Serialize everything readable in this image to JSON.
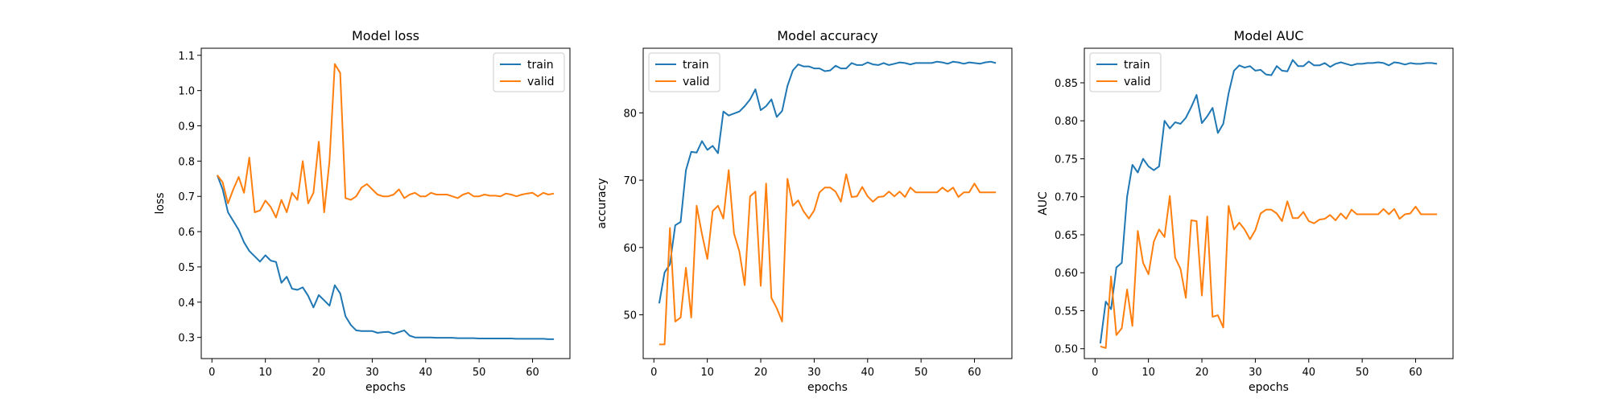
{
  "colors": {
    "train": "#1f77b4",
    "valid": "#ff7f0e"
  },
  "chart_data": [
    {
      "type": "line",
      "title": "Model loss",
      "xlabel": "epochs",
      "ylabel": "loss",
      "xlim": [
        -2,
        67
      ],
      "ylim": [
        0.24,
        1.12
      ],
      "xticks": [
        0,
        10,
        20,
        30,
        40,
        50,
        60
      ],
      "yticks": [
        0.3,
        0.4,
        0.5,
        0.6,
        0.7,
        0.8,
        0.9,
        1.0,
        1.1
      ],
      "ytick_labels": [
        "0.3",
        "0.4",
        "0.5",
        "0.6",
        "0.7",
        "0.8",
        "0.9",
        "1.0",
        "1.1"
      ],
      "legend": "top-right",
      "x": [
        1,
        2,
        3,
        4,
        5,
        6,
        7,
        8,
        9,
        10,
        11,
        12,
        13,
        14,
        15,
        16,
        17,
        18,
        19,
        20,
        21,
        22,
        23,
        24,
        25,
        26,
        27,
        28,
        29,
        30,
        31,
        32,
        33,
        34,
        35,
        36,
        37,
        38,
        39,
        40,
        41,
        42,
        43,
        44,
        45,
        46,
        47,
        48,
        49,
        50,
        51,
        52,
        53,
        54,
        55,
        56,
        57,
        58,
        59,
        60,
        61,
        62,
        63,
        64
      ],
      "series": [
        {
          "name": "train",
          "values": [
            0.76,
            0.72,
            0.655,
            0.63,
            0.605,
            0.57,
            0.545,
            0.53,
            0.515,
            0.533,
            0.518,
            0.514,
            0.455,
            0.472,
            0.438,
            0.435,
            0.442,
            0.418,
            0.385,
            0.42,
            0.405,
            0.39,
            0.448,
            0.425,
            0.36,
            0.335,
            0.32,
            0.318,
            0.318,
            0.318,
            0.313,
            0.315,
            0.316,
            0.31,
            0.315,
            0.32,
            0.305,
            0.3,
            0.3,
            0.3,
            0.3,
            0.299,
            0.299,
            0.299,
            0.299,
            0.298,
            0.298,
            0.298,
            0.298,
            0.297,
            0.297,
            0.297,
            0.297,
            0.297,
            0.297,
            0.297,
            0.296,
            0.296,
            0.296,
            0.296,
            0.296,
            0.296,
            0.295,
            0.295
          ]
        },
        {
          "name": "valid",
          "values": [
            0.76,
            0.74,
            0.68,
            0.72,
            0.755,
            0.71,
            0.81,
            0.655,
            0.66,
            0.688,
            0.67,
            0.64,
            0.69,
            0.655,
            0.71,
            0.69,
            0.8,
            0.68,
            0.71,
            0.855,
            0.655,
            0.8,
            1.075,
            1.05,
            0.695,
            0.69,
            0.7,
            0.725,
            0.735,
            0.72,
            0.705,
            0.7,
            0.7,
            0.705,
            0.72,
            0.695,
            0.705,
            0.71,
            0.7,
            0.7,
            0.71,
            0.705,
            0.705,
            0.705,
            0.7,
            0.695,
            0.705,
            0.71,
            0.7,
            0.7,
            0.705,
            0.702,
            0.702,
            0.7,
            0.708,
            0.705,
            0.7,
            0.705,
            0.708,
            0.71,
            0.7,
            0.71,
            0.705,
            0.708
          ]
        }
      ]
    },
    {
      "type": "line",
      "title": "Model accuracy",
      "xlabel": "epochs",
      "ylabel": "accuracy",
      "xlim": [
        -2,
        67
      ],
      "ylim": [
        43.5,
        89.6
      ],
      "xticks": [
        0,
        10,
        20,
        30,
        40,
        50,
        60
      ],
      "yticks": [
        50,
        60,
        70,
        80
      ],
      "ytick_labels": [
        "50",
        "60",
        "70",
        "80"
      ],
      "legend": "top-left",
      "x": [
        1,
        2,
        3,
        4,
        5,
        6,
        7,
        8,
        9,
        10,
        11,
        12,
        13,
        14,
        15,
        16,
        17,
        18,
        19,
        20,
        21,
        22,
        23,
        24,
        25,
        26,
        27,
        28,
        29,
        30,
        31,
        32,
        33,
        34,
        35,
        36,
        37,
        38,
        39,
        40,
        41,
        42,
        43,
        44,
        45,
        46,
        47,
        48,
        49,
        50,
        51,
        52,
        53,
        54,
        55,
        56,
        57,
        58,
        59,
        60,
        61,
        62,
        63,
        64
      ],
      "series": [
        {
          "name": "train",
          "values": [
            51.7,
            56.3,
            57.5,
            63.3,
            63.8,
            71.5,
            74.2,
            74.1,
            75.8,
            74.5,
            75.1,
            74.0,
            80.2,
            79.6,
            79.9,
            80.2,
            81.0,
            82.0,
            83.5,
            80.4,
            81.0,
            82.0,
            79.4,
            80.3,
            84.0,
            86.3,
            87.2,
            86.9,
            86.9,
            86.6,
            86.6,
            86.2,
            86.3,
            87.0,
            86.6,
            86.6,
            87.4,
            87.1,
            87.1,
            87.5,
            87.2,
            87.1,
            87.4,
            87.1,
            87.3,
            87.5,
            87.4,
            87.2,
            87.4,
            87.4,
            87.4,
            87.4,
            87.6,
            87.5,
            87.3,
            87.6,
            87.5,
            87.3,
            87.5,
            87.4,
            87.3,
            87.5,
            87.6,
            87.4
          ]
        },
        {
          "name": "valid",
          "values": [
            45.6,
            45.6,
            62.9,
            49.0,
            49.6,
            57.0,
            49.6,
            66.2,
            62.0,
            58.3,
            65.4,
            66.2,
            64.3,
            71.5,
            62.1,
            59.4,
            54.4,
            67.6,
            68.3,
            54.3,
            69.5,
            52.5,
            51.0,
            49.0,
            70.2,
            66.2,
            67.0,
            65.4,
            64.3,
            65.5,
            68.2,
            68.9,
            68.9,
            68.3,
            66.8,
            70.9,
            67.5,
            67.6,
            69.0,
            67.6,
            66.8,
            67.5,
            67.6,
            68.3,
            67.6,
            68.3,
            67.5,
            68.9,
            68.2,
            68.2,
            68.2,
            68.2,
            68.2,
            68.9,
            68.3,
            68.9,
            67.5,
            68.2,
            68.2,
            69.5,
            68.2,
            68.2,
            68.2,
            68.2
          ]
        }
      ]
    },
    {
      "type": "line",
      "title": "Model AUC",
      "xlabel": "epochs",
      "ylabel": "AUC",
      "xlim": [
        -2,
        67
      ],
      "ylim": [
        0.487,
        0.8955
      ],
      "xticks": [
        0,
        10,
        20,
        30,
        40,
        50,
        60
      ],
      "yticks": [
        0.5,
        0.55,
        0.6,
        0.65,
        0.7,
        0.75,
        0.8,
        0.85
      ],
      "ytick_labels": [
        "0.50",
        "0.55",
        "0.60",
        "0.65",
        "0.70",
        "0.75",
        "0.80",
        "0.85"
      ],
      "legend": "top-left",
      "x": [
        1,
        2,
        3,
        4,
        5,
        6,
        7,
        8,
        9,
        10,
        11,
        12,
        13,
        14,
        15,
        16,
        17,
        18,
        19,
        20,
        21,
        22,
        23,
        24,
        25,
        26,
        27,
        28,
        29,
        30,
        31,
        32,
        33,
        34,
        35,
        36,
        37,
        38,
        39,
        40,
        41,
        42,
        43,
        44,
        45,
        46,
        47,
        48,
        49,
        50,
        51,
        52,
        53,
        54,
        55,
        56,
        57,
        58,
        59,
        60,
        61,
        62,
        63,
        64
      ],
      "series": [
        {
          "name": "train",
          "values": [
            0.507,
            0.562,
            0.552,
            0.607,
            0.613,
            0.7,
            0.742,
            0.732,
            0.75,
            0.74,
            0.735,
            0.74,
            0.8,
            0.79,
            0.798,
            0.796,
            0.804,
            0.818,
            0.834,
            0.797,
            0.806,
            0.817,
            0.784,
            0.796,
            0.836,
            0.866,
            0.873,
            0.87,
            0.872,
            0.866,
            0.867,
            0.861,
            0.86,
            0.872,
            0.866,
            0.865,
            0.88,
            0.872,
            0.872,
            0.878,
            0.873,
            0.873,
            0.876,
            0.871,
            0.875,
            0.877,
            0.875,
            0.873,
            0.875,
            0.875,
            0.876,
            0.876,
            0.877,
            0.876,
            0.873,
            0.877,
            0.876,
            0.874,
            0.876,
            0.875,
            0.875,
            0.876,
            0.876,
            0.875
          ]
        },
        {
          "name": "valid",
          "values": [
            0.503,
            0.501,
            0.595,
            0.518,
            0.527,
            0.578,
            0.53,
            0.655,
            0.613,
            0.598,
            0.641,
            0.657,
            0.647,
            0.701,
            0.62,
            0.605,
            0.567,
            0.669,
            0.668,
            0.57,
            0.674,
            0.542,
            0.544,
            0.528,
            0.688,
            0.657,
            0.666,
            0.657,
            0.644,
            0.656,
            0.678,
            0.683,
            0.683,
            0.678,
            0.668,
            0.694,
            0.672,
            0.672,
            0.68,
            0.668,
            0.665,
            0.67,
            0.671,
            0.676,
            0.669,
            0.678,
            0.671,
            0.683,
            0.677,
            0.677,
            0.677,
            0.677,
            0.677,
            0.684,
            0.677,
            0.684,
            0.671,
            0.677,
            0.678,
            0.687,
            0.677,
            0.677,
            0.677,
            0.677
          ]
        }
      ]
    }
  ]
}
